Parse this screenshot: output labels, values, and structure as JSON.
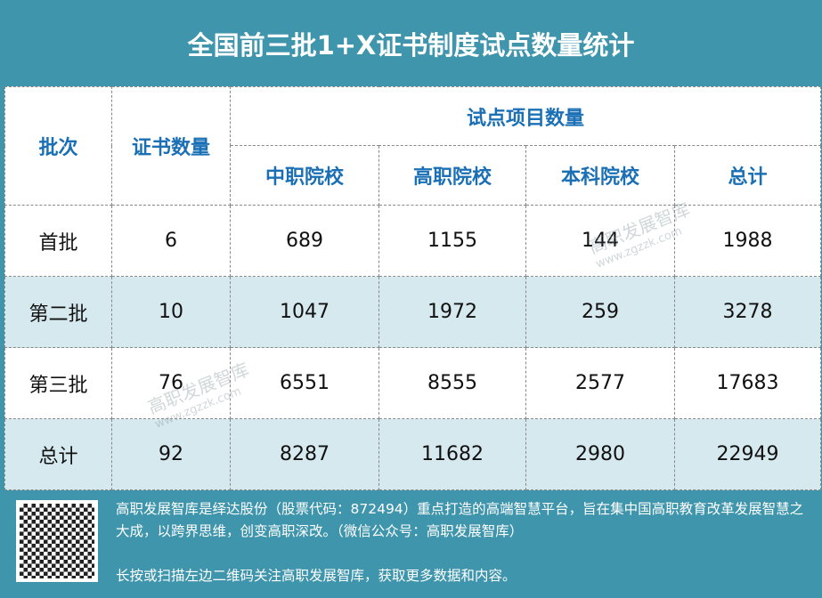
{
  "title": "全国前三批1+X证书制度试点数量统计",
  "table": {
    "headers": {
      "batch": "批次",
      "cert_count": "证书数量",
      "pilot_group": "试点项目数量",
      "cols": [
        "中职院校",
        "高职院校",
        "本科院校",
        "总计"
      ]
    },
    "rows": [
      {
        "batch": "首批",
        "cert": "6",
        "vals": [
          "689",
          "1155",
          "144",
          "1988"
        ]
      },
      {
        "batch": "第二批",
        "cert": "10",
        "vals": [
          "1047",
          "1972",
          "259",
          "3278"
        ]
      },
      {
        "batch": "第三批",
        "cert": "76",
        "vals": [
          "6551",
          "8555",
          "2577",
          "17683"
        ]
      },
      {
        "batch": "总计",
        "cert": "92",
        "vals": [
          "8287",
          "11682",
          "2980",
          "22949"
        ]
      }
    ]
  },
  "watermark": {
    "name": "高职发展智库",
    "url": "www.zgzzk.com"
  },
  "footer": {
    "line1": "高职发展智库是绎达股份（股票代码：872494）重点打造的高端智慧平台，旨在集中国高职教育改革发展智慧之大成，以跨界思维，创变高职深改。（微信公众号：高职发展智库）",
    "line2": "长按或扫描左边二维码关注高职发展智库，获取更多数据和内容。"
  },
  "colors": {
    "accent": "#3f95ab",
    "header_text": "#1a6fb5",
    "alt_row": "#d6e9ef"
  }
}
